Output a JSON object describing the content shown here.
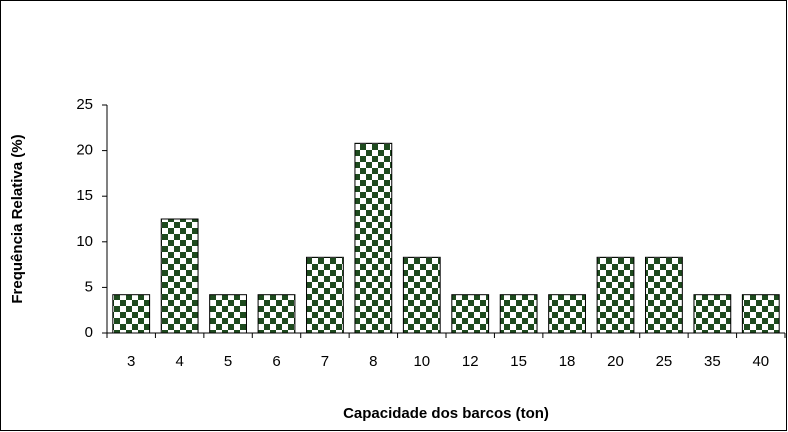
{
  "chart_data": {
    "type": "bar",
    "x_label": "Capacidade dos barcos (ton)",
    "y_label": "Frequência Relativa (%)",
    "categories": [
      "3",
      "4",
      "5",
      "6",
      "7",
      "8",
      "10",
      "12",
      "15",
      "18",
      "20",
      "25",
      "35",
      "40"
    ],
    "values": [
      4.2,
      12.5,
      4.2,
      4.2,
      8.3,
      20.8,
      8.3,
      4.2,
      4.2,
      4.2,
      8.3,
      8.3,
      4.2,
      4.2
    ],
    "color": "#1e4a1e",
    "ylim": [
      0,
      25
    ],
    "yticks": [
      0,
      5,
      10,
      15,
      20,
      25
    ]
  }
}
